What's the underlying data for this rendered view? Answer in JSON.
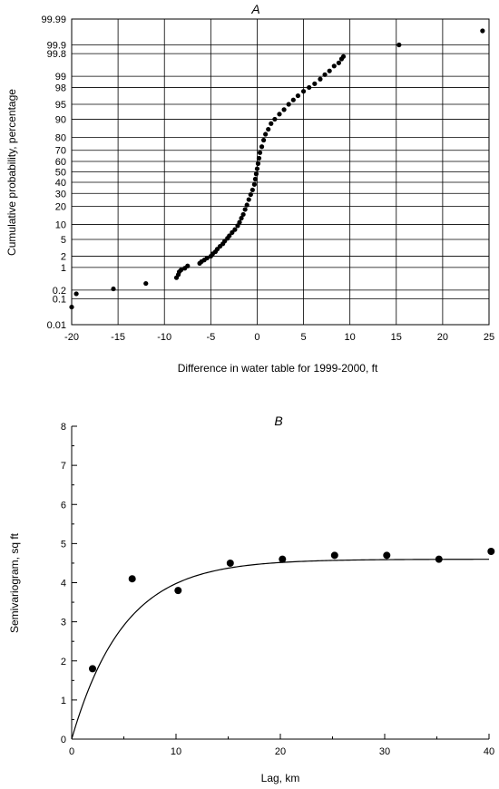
{
  "chart_data": [
    {
      "type": "scatter",
      "panel_label": "A",
      "xlabel": "Difference in water table for 1999-2000, ft",
      "ylabel": "Cumulative probability, percentage",
      "y_scale": "probability",
      "xlim": [
        -20,
        25
      ],
      "x_ticks": [
        -20,
        -15,
        -10,
        -5,
        0,
        5,
        10,
        15,
        20,
        25
      ],
      "y_ticks": [
        0.01,
        0.1,
        0.2,
        1,
        2,
        5,
        10,
        20,
        30,
        40,
        50,
        60,
        70,
        80,
        90,
        95,
        98,
        99,
        99.8,
        99.9,
        99.99
      ],
      "y_tick_labels": [
        "0.01",
        "0.1",
        "0.2",
        "1",
        "2",
        "5",
        "10",
        "20",
        "30",
        "40",
        "50",
        "60",
        "70",
        "80",
        "90",
        "95",
        "98",
        "99",
        "99.8",
        "99.9",
        "99.99"
      ],
      "grid": true,
      "series": [
        {
          "color": "#000000",
          "points": [
            {
              "x": -20,
              "y": 0.05
            },
            {
              "x": -19.5,
              "y": 0.15
            },
            {
              "x": -15.5,
              "y": 0.22
            },
            {
              "x": -12,
              "y": 0.33
            },
            {
              "x": -8.7,
              "y": 0.5
            },
            {
              "x": -8.5,
              "y": 0.62
            },
            {
              "x": -8.4,
              "y": 0.75
            },
            {
              "x": -8.2,
              "y": 0.85
            },
            {
              "x": -7.8,
              "y": 0.95
            },
            {
              "x": -7.5,
              "y": 1.1
            },
            {
              "x": -6.2,
              "y": 1.3
            },
            {
              "x": -6.0,
              "y": 1.45
            },
            {
              "x": -5.7,
              "y": 1.6
            },
            {
              "x": -5.4,
              "y": 1.8
            },
            {
              "x": -5.0,
              "y": 2.0
            },
            {
              "x": -4.8,
              "y": 2.3
            },
            {
              "x": -4.5,
              "y": 2.6
            },
            {
              "x": -4.3,
              "y": 3.0
            },
            {
              "x": -4.0,
              "y": 3.5
            },
            {
              "x": -3.7,
              "y": 4.0
            },
            {
              "x": -3.5,
              "y": 4.6
            },
            {
              "x": -3.2,
              "y": 5.3
            },
            {
              "x": -3.0,
              "y": 6.0
            },
            {
              "x": -2.7,
              "y": 7.0
            },
            {
              "x": -2.4,
              "y": 8.0
            },
            {
              "x": -2.1,
              "y": 9.5
            },
            {
              "x": -1.9,
              "y": 11
            },
            {
              "x": -1.7,
              "y": 13
            },
            {
              "x": -1.5,
              "y": 15
            },
            {
              "x": -1.3,
              "y": 18
            },
            {
              "x": -1.1,
              "y": 21
            },
            {
              "x": -0.9,
              "y": 25
            },
            {
              "x": -0.7,
              "y": 29
            },
            {
              "x": -0.5,
              "y": 33
            },
            {
              "x": -0.3,
              "y": 38
            },
            {
              "x": -0.2,
              "y": 43
            },
            {
              "x": -0.1,
              "y": 48
            },
            {
              "x": 0.0,
              "y": 53
            },
            {
              "x": 0.1,
              "y": 58
            },
            {
              "x": 0.2,
              "y": 63
            },
            {
              "x": 0.3,
              "y": 68
            },
            {
              "x": 0.5,
              "y": 73
            },
            {
              "x": 0.7,
              "y": 78
            },
            {
              "x": 0.9,
              "y": 82
            },
            {
              "x": 1.2,
              "y": 85
            },
            {
              "x": 1.5,
              "y": 88
            },
            {
              "x": 1.9,
              "y": 90
            },
            {
              "x": 2.4,
              "y": 92
            },
            {
              "x": 2.9,
              "y": 93.5
            },
            {
              "x": 3.4,
              "y": 95
            },
            {
              "x": 3.9,
              "y": 96
            },
            {
              "x": 4.4,
              "y": 96.8
            },
            {
              "x": 5.0,
              "y": 97.5
            },
            {
              "x": 5.6,
              "y": 98
            },
            {
              "x": 6.2,
              "y": 98.4
            },
            {
              "x": 6.8,
              "y": 98.8
            },
            {
              "x": 7.3,
              "y": 99.1
            },
            {
              "x": 7.8,
              "y": 99.3
            },
            {
              "x": 8.3,
              "y": 99.5
            },
            {
              "x": 8.8,
              "y": 99.6
            },
            {
              "x": 9.1,
              "y": 99.7
            },
            {
              "x": 9.3,
              "y": 99.75
            },
            {
              "x": 15.3,
              "y": 99.9
            },
            {
              "x": 24.3,
              "y": 99.97
            }
          ]
        }
      ]
    },
    {
      "type": "scatter",
      "panel_label": "B",
      "xlabel": "Lag, km",
      "ylabel": "Semivariogram, sq ft",
      "xlim": [
        0,
        40
      ],
      "ylim": [
        0,
        8
      ],
      "x_ticks": [
        0,
        10,
        20,
        30,
        40
      ],
      "y_ticks": [
        0,
        1,
        2,
        3,
        4,
        5,
        6,
        7,
        8
      ],
      "grid": false,
      "series": [
        {
          "color": "#000000",
          "points": [
            {
              "x": 2,
              "y": 1.8
            },
            {
              "x": 5.8,
              "y": 4.1
            },
            {
              "x": 10.2,
              "y": 3.8
            },
            {
              "x": 15.2,
              "y": 4.5
            },
            {
              "x": 20.2,
              "y": 4.6
            },
            {
              "x": 25.2,
              "y": 4.7
            },
            {
              "x": 30.2,
              "y": 4.7
            },
            {
              "x": 35.2,
              "y": 4.6
            },
            {
              "x": 40.2,
              "y": 4.8
            }
          ]
        }
      ],
      "fitted_curve": {
        "model": "exponential",
        "sill": 4.6,
        "range_km": 15,
        "x": [
          0,
          40
        ]
      }
    }
  ]
}
